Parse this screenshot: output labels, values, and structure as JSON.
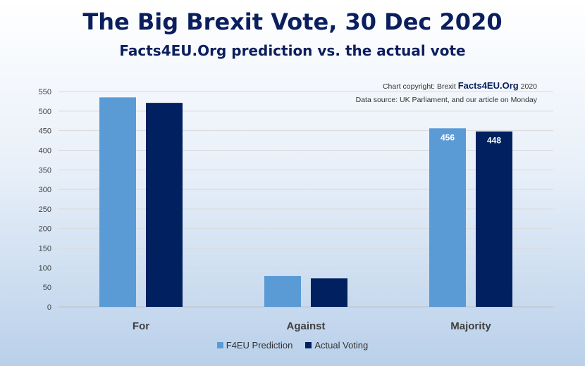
{
  "chart_data": {
    "type": "bar",
    "title": "The Big Brexit Vote, 30 Dec 2020",
    "subtitle": "Facts4EU.Org prediction vs. the actual vote",
    "credit_line1_prefix": "Chart copyright: Brexit",
    "credit_brand": "Facts4EU.Org",
    "credit_line1_suffix": "2020",
    "credit_line2": "Data source: UK Parliament, and our article on Monday",
    "categories": [
      "For",
      "Against",
      "Majority"
    ],
    "series": [
      {
        "name": "F4EU Prediction",
        "color": "#5b9bd5",
        "values": [
          535,
          79,
          456
        ]
      },
      {
        "name": "Actual Voting",
        "color": "#002060",
        "values": [
          521,
          73,
          448
        ]
      }
    ],
    "data_labels": [
      {
        "series": 0,
        "category": 2,
        "text": "456"
      },
      {
        "series": 1,
        "category": 2,
        "text": "448"
      }
    ],
    "yticks": [
      "0",
      "50",
      "100",
      "150",
      "200",
      "250",
      "300",
      "350",
      "400",
      "450",
      "500",
      "550"
    ],
    "ylim": [
      0,
      550
    ],
    "xlabel": "",
    "ylabel": "",
    "grid": true,
    "legend_position": "bottom"
  }
}
